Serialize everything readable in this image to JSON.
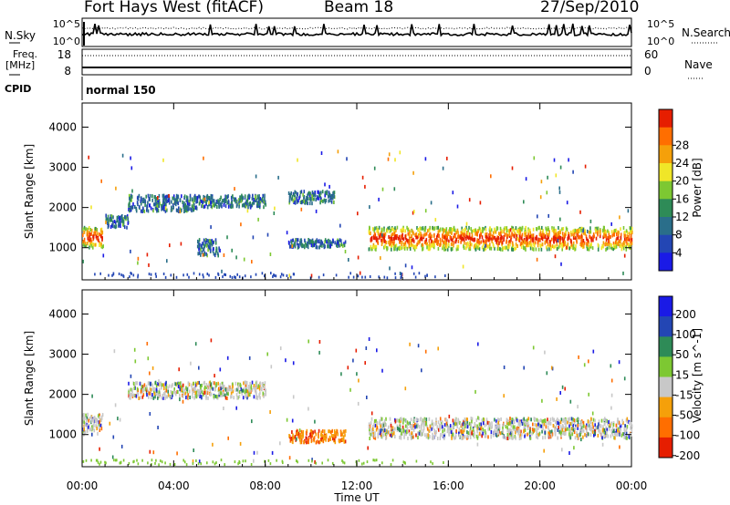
{
  "header": {
    "site": "Fort Hays West (fitACF)",
    "beam": "Beam 18",
    "date": "27/Sep/2010"
  },
  "panels": {
    "nsky": {
      "label": "N.Sky",
      "ticks_left": [
        "10^5",
        "10^0"
      ],
      "ticks_right": [
        "10^5",
        "10^0"
      ],
      "right_label": "N.Search"
    },
    "freq": {
      "label": "Freq.",
      "unit": "[MHz]",
      "ticks_left": [
        "18",
        "8"
      ],
      "ticks_right": [
        "60",
        "0"
      ],
      "right_label": "Nave"
    },
    "cpid": {
      "label": "CPID",
      "value": "normal 150"
    }
  },
  "colors": {
    "power_scale": [
      "#1a1ae6",
      "#2346b4",
      "#2a6e8a",
      "#2e8b57",
      "#7dc832",
      "#f0e628",
      "#f5a00a",
      "#ff6e00",
      "#e61e00"
    ],
    "velocity_scale": [
      "#1a1ae6",
      "#2346b4",
      "#2e8b57",
      "#7dc832",
      "#c8c8c8",
      "#f5a00a",
      "#ff6e00",
      "#e61e00"
    ]
  },
  "chart_data": [
    {
      "type": "heatmap",
      "title": "",
      "xlabel": "Time UT",
      "ylabel": "Slant Range [km]",
      "x_ticks": [
        "00:00",
        "04:00",
        "08:00",
        "12:00",
        "16:00",
        "20:00",
        "00:00"
      ],
      "y_ticks": [
        "1000",
        "2000",
        "3000",
        "4000"
      ],
      "ylim": [
        200,
        4600
      ],
      "colorbar": {
        "label": "Power [dB]",
        "ticks": [
          "4",
          "8",
          "12",
          "16",
          "20",
          "24",
          "28"
        ]
      },
      "series": [
        {
          "range_km": [
            1000,
            1500
          ],
          "time_h": [
            0,
            0.9
          ],
          "dominant": "20-28 dB"
        },
        {
          "range_km": [
            1500,
            1800
          ],
          "time_h": [
            1,
            2
          ],
          "dominant": "8-16 dB"
        },
        {
          "range_km": [
            1900,
            2300
          ],
          "time_h": [
            2,
            5
          ],
          "dominant": "4-8 dB"
        },
        {
          "range_km": [
            2000,
            2300
          ],
          "time_h": [
            5,
            8
          ],
          "dominant": "4-8 dB"
        },
        {
          "range_km": [
            800,
            1200
          ],
          "time_h": [
            5,
            6
          ],
          "dominant": "4-12 dB"
        },
        {
          "range_km": [
            1000,
            1200
          ],
          "time_h": [
            9,
            11.5
          ],
          "dominant": "4-12 dB"
        },
        {
          "range_km": [
            2100,
            2400
          ],
          "time_h": [
            9,
            11
          ],
          "dominant": "4-8 dB"
        },
        {
          "range_km": [
            950,
            1500
          ],
          "time_h": [
            12.5,
            24
          ],
          "dominant": "12-28 dB"
        }
      ]
    },
    {
      "type": "heatmap",
      "title": "",
      "xlabel": "Time UT",
      "ylabel": "Slant Range [km]",
      "x_ticks": [
        "00:00",
        "04:00",
        "08:00",
        "12:00",
        "16:00",
        "20:00",
        "00:00"
      ],
      "y_ticks": [
        "1000",
        "2000",
        "3000",
        "4000"
      ],
      "ylim": [
        200,
        4600
      ],
      "colorbar": {
        "label": "Velocity [m s^-1]",
        "ticks": [
          "200",
          "100",
          "50",
          "15",
          "-15",
          "-50",
          "-100",
          "-200"
        ]
      },
      "series": [
        {
          "range_km": [
            1000,
            1500
          ],
          "time_h": [
            0,
            0.9
          ],
          "dominant": "-50 to 50 m/s"
        },
        {
          "range_km": [
            1900,
            2300
          ],
          "time_h": [
            2,
            8
          ],
          "dominant": "-15 to 15 m/s"
        },
        {
          "range_km": [
            800,
            1100
          ],
          "time_h": [
            9,
            11.5
          ],
          "dominant": "-100 to -15 m/s"
        },
        {
          "range_km": [
            900,
            1400
          ],
          "time_h": [
            12.5,
            24
          ],
          "dominant": "-15 to 15 m/s"
        }
      ]
    }
  ]
}
